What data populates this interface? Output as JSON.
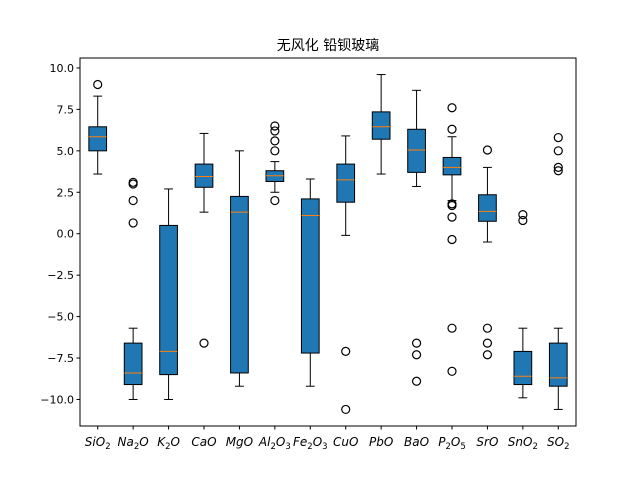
{
  "chart_data": {
    "type": "box",
    "title": "无风化 铅钡玻璃",
    "xlabel": "",
    "ylabel": "",
    "ylim": [
      -11.6,
      10.6
    ],
    "yticks": [
      -10.0,
      -7.5,
      -5.0,
      -2.5,
      0.0,
      2.5,
      5.0,
      7.5,
      10.0
    ],
    "ytick_labels": [
      "−10.0",
      "−7.5",
      "−5.0",
      "−2.5",
      "0.0",
      "2.5",
      "5.0",
      "7.5",
      "10.0"
    ],
    "grid": false,
    "legend": "none",
    "colors": {
      "box": "#1f77b4",
      "median": "#ff7f0e",
      "line": "#000000"
    },
    "categories": [
      {
        "name": "SiO2",
        "label": "SiO",
        "sub": "2",
        "label_after": ""
      },
      {
        "name": "Na2O",
        "label": "Na",
        "sub": "2",
        "label_after": "O"
      },
      {
        "name": "K2O",
        "label": "K",
        "sub": "2",
        "label_after": "O"
      },
      {
        "name": "CaO",
        "label": "CaO",
        "sub": "",
        "label_after": ""
      },
      {
        "name": "MgO",
        "label": "MgO",
        "sub": "",
        "label_after": ""
      },
      {
        "name": "Al2O3",
        "label": "Al",
        "sub": "2",
        "label_after": "O",
        "sub2": "3"
      },
      {
        "name": "Fe2O3",
        "label": "Fe",
        "sub": "2",
        "label_after": "O",
        "sub2": "3"
      },
      {
        "name": "CuO",
        "label": "CuO",
        "sub": "",
        "label_after": ""
      },
      {
        "name": "PbO",
        "label": "PbO",
        "sub": "",
        "label_after": ""
      },
      {
        "name": "BaO",
        "label": "BaO",
        "sub": "",
        "label_after": ""
      },
      {
        "name": "P2O5",
        "label": "P",
        "sub": "2",
        "label_after": "O",
        "sub2": "5"
      },
      {
        "name": "SrO",
        "label": "SrO",
        "sub": "",
        "label_after": ""
      },
      {
        "name": "SnO2",
        "label": "SnO",
        "sub": "2",
        "label_after": ""
      },
      {
        "name": "SO2",
        "label": "SO",
        "sub": "2",
        "label_after": ""
      }
    ],
    "boxes": [
      {
        "name": "SiO2",
        "whislo": 3.6,
        "q1": 5.0,
        "med": 5.85,
        "q3": 6.45,
        "whishi": 8.3,
        "fliers": [
          9.0
        ]
      },
      {
        "name": "Na2O",
        "whislo": -10.0,
        "q1": -9.1,
        "med": -8.4,
        "q3": -6.6,
        "whishi": -5.7,
        "fliers": [
          3.1,
          3.0,
          2.0,
          0.65
        ]
      },
      {
        "name": "K2O",
        "whislo": -10.0,
        "q1": -8.5,
        "med": -7.1,
        "q3": 0.5,
        "whishi": 2.7,
        "fliers": []
      },
      {
        "name": "CaO",
        "whislo": 1.3,
        "q1": 2.8,
        "med": 3.45,
        "q3": 4.2,
        "whishi": 6.05,
        "fliers": [
          -6.6
        ]
      },
      {
        "name": "MgO",
        "whislo": -9.2,
        "q1": -8.4,
        "med": 1.3,
        "q3": 2.25,
        "whishi": 5.0,
        "fliers": []
      },
      {
        "name": "Al2O3",
        "whislo": 2.5,
        "q1": 3.15,
        "med": 3.5,
        "q3": 3.8,
        "whishi": 4.35,
        "fliers": [
          6.5,
          6.2,
          5.6,
          5.0,
          2.0
        ]
      },
      {
        "name": "Fe2O3",
        "whislo": -9.2,
        "q1": -7.2,
        "med": 1.1,
        "q3": 2.1,
        "whishi": 3.3,
        "fliers": []
      },
      {
        "name": "CuO",
        "whislo": -0.1,
        "q1": 1.9,
        "med": 3.25,
        "q3": 4.2,
        "whishi": 5.9,
        "fliers": [
          -7.1,
          -10.6
        ]
      },
      {
        "name": "PbO",
        "whislo": 3.6,
        "q1": 5.7,
        "med": 6.45,
        "q3": 7.35,
        "whishi": 9.6,
        "fliers": []
      },
      {
        "name": "BaO",
        "whislo": 2.85,
        "q1": 3.7,
        "med": 5.05,
        "q3": 6.3,
        "whishi": 8.65,
        "fliers": [
          -6.6,
          -7.3,
          -8.9
        ]
      },
      {
        "name": "P2O5",
        "whislo": 2.0,
        "q1": 3.55,
        "med": 4.0,
        "q3": 4.6,
        "whishi": 5.85,
        "fliers": [
          7.6,
          6.3,
          1.8,
          1.7,
          1.0,
          -0.35,
          -5.7,
          -8.3
        ]
      },
      {
        "name": "SrO",
        "whislo": -0.5,
        "q1": 0.75,
        "med": 1.35,
        "q3": 2.35,
        "whishi": 4.0,
        "fliers": [
          5.05,
          -5.7,
          -6.6,
          -7.3
        ]
      },
      {
        "name": "SnO2",
        "whislo": -9.9,
        "q1": -9.1,
        "med": -8.6,
        "q3": -7.1,
        "whishi": -5.7,
        "fliers": [
          1.15,
          0.8
        ]
      },
      {
        "name": "SO2",
        "whislo": -10.6,
        "q1": -9.2,
        "med": -8.7,
        "q3": -6.6,
        "whishi": -5.7,
        "fliers": [
          5.8,
          5.0,
          4.0,
          3.8
        ]
      }
    ]
  }
}
